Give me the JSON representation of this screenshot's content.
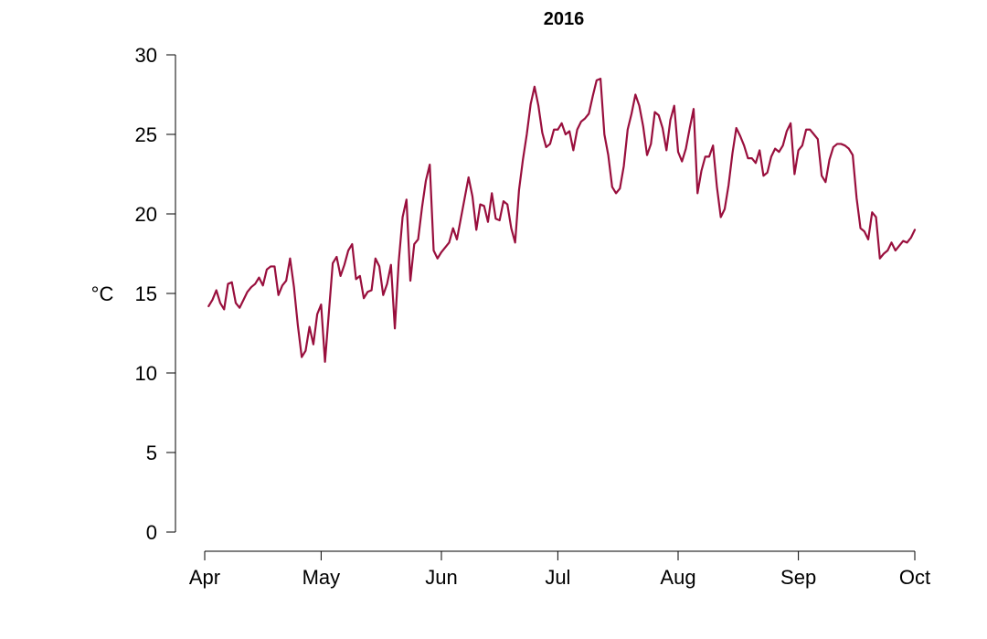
{
  "chart_data": {
    "type": "line",
    "title": "2016",
    "xlabel": "",
    "ylabel": "°C",
    "ylim": [
      0,
      30
    ],
    "yticks": [
      0,
      5,
      10,
      15,
      20,
      25,
      30
    ],
    "xlim": [
      "2016-04-01",
      "2016-10-02"
    ],
    "xticks": [
      {
        "date": "2016-04-01",
        "label": "Apr"
      },
      {
        "date": "2016-05-01",
        "label": "May"
      },
      {
        "date": "2016-06-01",
        "label": "Jun"
      },
      {
        "date": "2016-07-01",
        "label": "Jul"
      },
      {
        "date": "2016-08-01",
        "label": "Aug"
      },
      {
        "date": "2016-09-01",
        "label": "Sep"
      },
      {
        "date": "2016-10-01",
        "label": "Oct"
      }
    ],
    "grid": false,
    "line_color": "#990f3d",
    "series": [
      {
        "x_start": "2016-04-02",
        "values": [
          14.2,
          14.6,
          15.2,
          14.4,
          14.0,
          15.6,
          15.7,
          14.4,
          14.1,
          14.6,
          15.1,
          15.4,
          15.6,
          16.0,
          15.5,
          16.5,
          16.7,
          16.7,
          14.9,
          15.5,
          15.8,
          17.2,
          15.4,
          13.0,
          11.0,
          11.4,
          12.9,
          11.8,
          13.7,
          14.3,
          10.7,
          13.8,
          16.9,
          17.3,
          16.1,
          16.8,
          17.7,
          18.1,
          15.9,
          16.1,
          14.7,
          15.1,
          15.2,
          17.2,
          16.7,
          14.9,
          15.6,
          16.8,
          12.8,
          17.0,
          19.8,
          20.9,
          15.8,
          18.1,
          18.4,
          20.4,
          22.1,
          23.1,
          17.7,
          17.2,
          17.6,
          17.9,
          18.2,
          19.1,
          18.4,
          19.7,
          21.0,
          22.3,
          21.1,
          19.0,
          20.6,
          20.5,
          19.5,
          21.3,
          19.7,
          19.6,
          20.8,
          20.6,
          19.1,
          18.2,
          21.5,
          23.4,
          25.0,
          26.9,
          28.0,
          26.8,
          25.1,
          24.2,
          24.4,
          25.3,
          25.3,
          25.7,
          25.0,
          25.2,
          24.0,
          25.3,
          25.8,
          26.0,
          26.3,
          27.4,
          28.4,
          28.5,
          25.0,
          23.7,
          21.7,
          21.3,
          21.6,
          23.0,
          25.3,
          26.3,
          27.5,
          26.8,
          25.5,
          23.7,
          24.4,
          26.4,
          26.2,
          25.4,
          24.0,
          25.9,
          26.8,
          23.9,
          23.3,
          24.1,
          25.4,
          26.6,
          21.3,
          22.7,
          23.6,
          23.6,
          24.3,
          21.7,
          19.8,
          20.3,
          21.8,
          23.8,
          25.4,
          24.9,
          24.3,
          23.5,
          23.5,
          23.2,
          24.0,
          22.4,
          22.6,
          23.6,
          24.1,
          23.9,
          24.3,
          25.2,
          25.7,
          22.5,
          24.0,
          24.3,
          25.3,
          25.3,
          25.0,
          24.7,
          22.4,
          22.0,
          23.4,
          24.2,
          24.4,
          24.4,
          24.3,
          24.1,
          23.7,
          21.0,
          19.1,
          18.9,
          18.4,
          20.1,
          19.8,
          17.2,
          17.5,
          17.7,
          18.2,
          17.7,
          18.0,
          18.3,
          18.2,
          18.5,
          19.0
        ]
      }
    ]
  }
}
